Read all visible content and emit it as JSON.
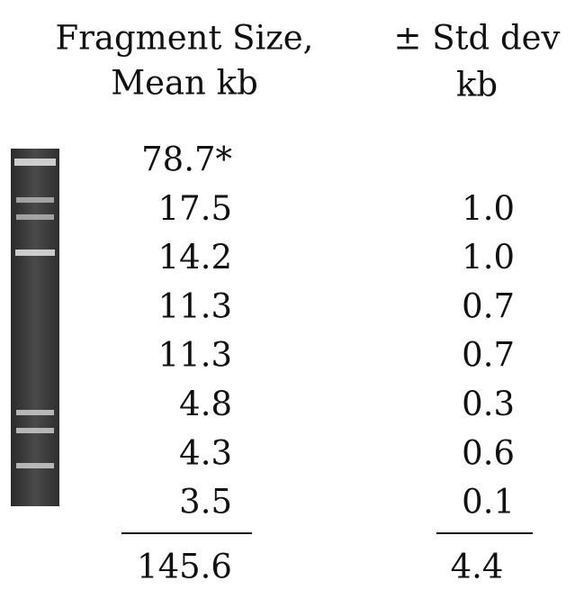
{
  "header": {
    "fragment": [
      "Fragment Size,",
      "Mean kb"
    ],
    "stddev": [
      "± Std dev",
      "kb"
    ]
  },
  "table": {
    "rows": [
      [
        "78.7*"
      ],
      [
        "17.5",
        "1.0"
      ],
      [
        "14.2",
        "1.0"
      ],
      [
        "11.3",
        "0.7"
      ],
      [
        "11.3",
        "0.7"
      ],
      [
        "4.8",
        "0.3"
      ],
      [
        "4.3",
        "0.6"
      ],
      [
        "3.5",
        "0.1"
      ]
    ]
  },
  "totals": [
    "145.6",
    "4.4"
  ]
}
